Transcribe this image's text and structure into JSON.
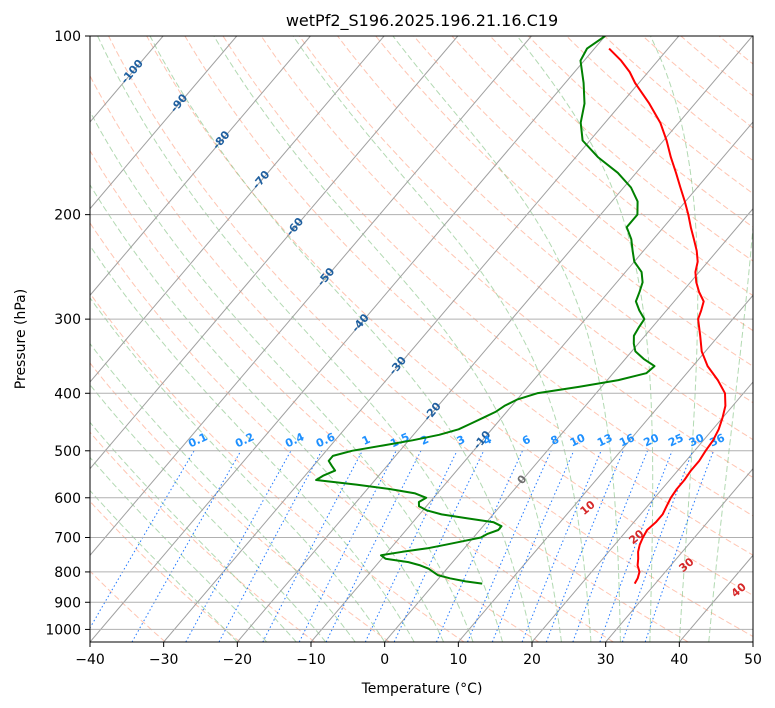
{
  "chart_data": {
    "type": "line",
    "title": "wetPf2_S196.2025.196.21.16.C19",
    "xlabel": "Temperature (°C)",
    "ylabel": "Pressure (hPa)",
    "xlim": [
      -40,
      50
    ],
    "ylim": [
      1050,
      100
    ],
    "y_scale": "log",
    "x_ticks": [
      -40,
      -30,
      -20,
      -10,
      0,
      10,
      20,
      30,
      40,
      50
    ],
    "x_tick_labels": [
      "−40",
      "−30",
      "−20",
      "−10",
      "0",
      "10",
      "20",
      "30",
      "40",
      "50"
    ],
    "y_ticks": [
      100,
      200,
      300,
      400,
      500,
      600,
      700,
      800,
      900,
      1000
    ],
    "y_tick_labels": [
      "100",
      "200",
      "300",
      "400",
      "500",
      "600",
      "700",
      "800",
      "900",
      "1000"
    ],
    "grid": true,
    "skew": "skewed temperature axis",
    "colors": {
      "temperature": "#ff0000",
      "dewpoint": "#008000",
      "isotherm": "#a0a0a0",
      "dry_adiabat": "#ff9f7f",
      "moist_adiabat": "#7fbf7f",
      "mixing_ratio": "#1f77ff",
      "isotherm_label": "#1f5f9f",
      "dry_adiabat_label": "#d62728",
      "mixing_label": "#1e90ff"
    },
    "series": [
      {
        "key": "temperature",
        "values": [
          [
            837,
            27.2
          ],
          [
            820,
            27.0
          ],
          [
            800,
            26.5
          ],
          [
            780,
            25.5
          ],
          [
            760,
            24.8
          ],
          [
            740,
            24.0
          ],
          [
            720,
            23.4
          ],
          [
            700,
            23.0
          ],
          [
            680,
            22.7
          ],
          [
            660,
            23.0
          ],
          [
            640,
            23.0
          ],
          [
            620,
            22.6
          ],
          [
            600,
            22.2
          ],
          [
            580,
            22.0
          ],
          [
            560,
            22.0
          ],
          [
            540,
            21.8
          ],
          [
            520,
            21.8
          ],
          [
            500,
            21.5
          ],
          [
            480,
            21.3
          ],
          [
            460,
            20.8
          ],
          [
            440,
            20.0
          ],
          [
            420,
            19.0
          ],
          [
            400,
            17.5
          ],
          [
            380,
            15.0
          ],
          [
            360,
            12.0
          ],
          [
            340,
            9.5
          ],
          [
            320,
            7.5
          ],
          [
            300,
            5.3
          ],
          [
            290,
            4.7
          ],
          [
            280,
            4.0
          ],
          [
            270,
            2.3
          ],
          [
            260,
            0.8
          ],
          [
            250,
            -0.5
          ],
          [
            240,
            -1.4
          ],
          [
            230,
            -2.8
          ],
          [
            220,
            -4.5
          ],
          [
            210,
            -6.3
          ],
          [
            200,
            -8.1
          ],
          [
            190,
            -10.1
          ],
          [
            180,
            -12.3
          ],
          [
            170,
            -14.6
          ],
          [
            160,
            -17.1
          ],
          [
            150,
            -19.6
          ],
          [
            140,
            -22.5
          ],
          [
            130,
            -26.2
          ],
          [
            120,
            -30.5
          ],
          [
            115,
            -32.5
          ],
          [
            110,
            -35.0
          ],
          [
            105,
            -38.0
          ]
        ]
      },
      {
        "key": "dewpoint",
        "values": [
          [
            837,
            6.5
          ],
          [
            830,
            4.0
          ],
          [
            820,
            1.5
          ],
          [
            810,
            -0.5
          ],
          [
            800,
            -1.5
          ],
          [
            790,
            -2.5
          ],
          [
            780,
            -4.0
          ],
          [
            770,
            -6.0
          ],
          [
            760,
            -9.5
          ],
          [
            750,
            -10.5
          ],
          [
            740,
            -8.0
          ],
          [
            730,
            -5.0
          ],
          [
            720,
            -3.0
          ],
          [
            710,
            -1.0
          ],
          [
            700,
            1.0
          ],
          [
            690,
            1.5
          ],
          [
            680,
            2.5
          ],
          [
            670,
            2.5
          ],
          [
            660,
            1.0
          ],
          [
            650,
            -3.0
          ],
          [
            640,
            -7.0
          ],
          [
            630,
            -9.5
          ],
          [
            620,
            -11.0
          ],
          [
            610,
            -11.5
          ],
          [
            600,
            -11.0
          ],
          [
            590,
            -13.0
          ],
          [
            580,
            -17.0
          ],
          [
            570,
            -22.0
          ],
          [
            560,
            -28.0
          ],
          [
            550,
            -27.5
          ],
          [
            540,
            -26.5
          ],
          [
            530,
            -27.5
          ],
          [
            520,
            -28.5
          ],
          [
            510,
            -28.5
          ],
          [
            500,
            -26.5
          ],
          [
            490,
            -23.0
          ],
          [
            480,
            -19.5
          ],
          [
            470,
            -16.5
          ],
          [
            460,
            -14.5
          ],
          [
            450,
            -13.5
          ],
          [
            440,
            -12.5
          ],
          [
            430,
            -11.5
          ],
          [
            420,
            -11.0
          ],
          [
            410,
            -10.0
          ],
          [
            400,
            -8.0
          ],
          [
            390,
            -3.0
          ],
          [
            380,
            1.5
          ],
          [
            370,
            4.5
          ],
          [
            360,
            4.8
          ],
          [
            350,
            2.5
          ],
          [
            340,
            0.5
          ],
          [
            330,
            -0.6
          ],
          [
            320,
            -1.5
          ],
          [
            310,
            -1.8
          ],
          [
            300,
            -2.0
          ],
          [
            290,
            -3.7
          ],
          [
            280,
            -5.2
          ],
          [
            270,
            -5.8
          ],
          [
            260,
            -6.5
          ],
          [
            250,
            -7.8
          ],
          [
            240,
            -10.0
          ],
          [
            230,
            -11.5
          ],
          [
            220,
            -13.0
          ],
          [
            210,
            -15.0
          ],
          [
            200,
            -15.0
          ],
          [
            190,
            -16.5
          ],
          [
            180,
            -19.0
          ],
          [
            170,
            -22.5
          ],
          [
            160,
            -27.0
          ],
          [
            150,
            -31.0
          ],
          [
            140,
            -33.3
          ],
          [
            130,
            -35.0
          ],
          [
            120,
            -37.5
          ],
          [
            110,
            -40.5
          ],
          [
            105,
            -41.0
          ],
          [
            100,
            -40.0
          ]
        ]
      }
    ],
    "isotherm_labels": [
      "-100",
      "-90",
      "-80",
      "-70",
      "-60",
      "-50",
      "-40",
      "-30",
      "-20",
      "-10",
      "0"
    ],
    "dry_adiabat_labels": [
      "10",
      "20",
      "30",
      "40"
    ],
    "mixing_ratio_labels": [
      "0.1",
      "0.2",
      "0.4",
      "0.6",
      "1",
      "1.5",
      "2",
      "3",
      "4",
      "6",
      "8",
      "10",
      "13",
      "16",
      "20",
      "25",
      "30",
      "36"
    ]
  }
}
